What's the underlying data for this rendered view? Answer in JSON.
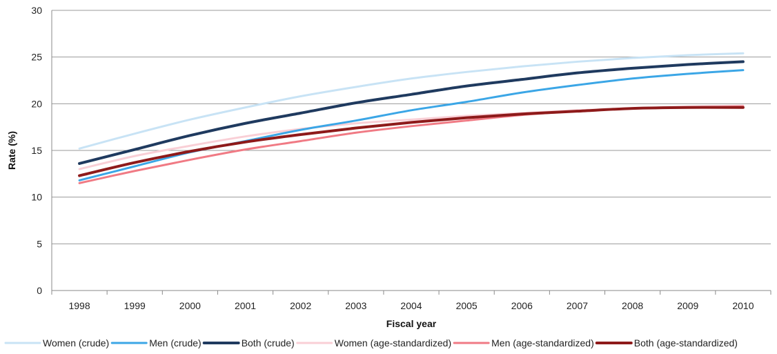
{
  "chart_data": {
    "type": "line",
    "xlabel": "Fiscal year",
    "ylabel": "Rate (%)",
    "ylim": [
      0,
      30
    ],
    "yticks": [
      0,
      5,
      10,
      15,
      20,
      25,
      30
    ],
    "grid": "horizontal",
    "legend_position": "bottom",
    "x": [
      "1998",
      "1999",
      "2000",
      "2001",
      "2002",
      "2003",
      "2004",
      "2005",
      "2006",
      "2007",
      "2008",
      "2009",
      "2010"
    ],
    "series": [
      {
        "name": "Women (crude)",
        "color": "#c8e3f5",
        "values": [
          15.2,
          16.8,
          18.3,
          19.6,
          20.8,
          21.8,
          22.7,
          23.4,
          24.0,
          24.5,
          24.9,
          25.2,
          25.4
        ]
      },
      {
        "name": "Men (crude)",
        "color": "#3ba6e6",
        "values": [
          11.8,
          13.3,
          14.8,
          16.0,
          17.2,
          18.2,
          19.3,
          20.2,
          21.2,
          22.0,
          22.7,
          23.2,
          23.6
        ]
      },
      {
        "name": "Both (crude)",
        "color": "#1f3a5f",
        "values": [
          13.6,
          15.1,
          16.6,
          17.9,
          19.0,
          20.1,
          21.0,
          21.9,
          22.6,
          23.3,
          23.8,
          24.2,
          24.5
        ]
      },
      {
        "name": "Women (age-standardized)",
        "color": "#f9cfd6",
        "values": [
          13.0,
          14.4,
          15.5,
          16.5,
          17.3,
          17.9,
          18.3,
          18.7,
          19.0,
          19.3,
          19.5,
          19.7,
          19.8
        ]
      },
      {
        "name": "Men (age-standardized)",
        "color": "#f07a84",
        "values": [
          11.5,
          12.8,
          14.0,
          15.1,
          16.0,
          16.9,
          17.6,
          18.2,
          18.8,
          19.2,
          19.5,
          19.6,
          19.7
        ]
      },
      {
        "name": "Both (age-standardized)",
        "color": "#8e1a1a",
        "values": [
          12.3,
          13.7,
          14.9,
          15.9,
          16.7,
          17.4,
          18.0,
          18.5,
          18.9,
          19.2,
          19.5,
          19.6,
          19.6
        ]
      }
    ]
  }
}
